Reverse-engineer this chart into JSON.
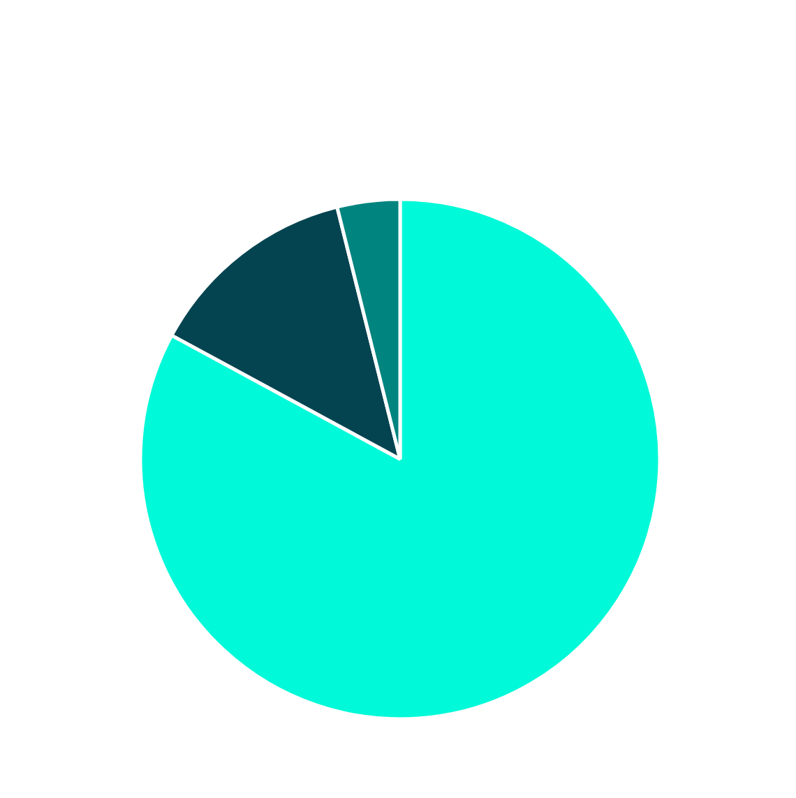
{
  "chart_data": {
    "type": "pie",
    "categories": [
      null,
      null,
      null
    ],
    "values": [
      82.9,
      13.2,
      3.9
    ],
    "colors": [
      "#00f9d8",
      "#034450",
      "#00847f"
    ]
  }
}
